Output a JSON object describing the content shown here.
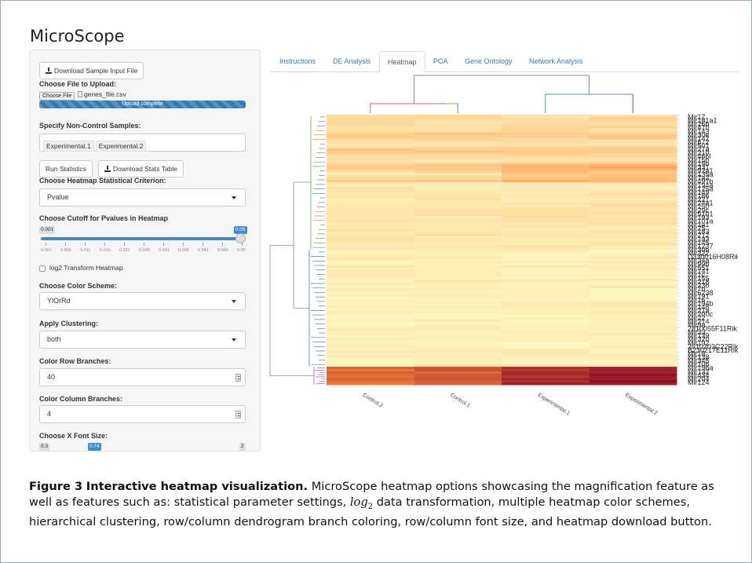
{
  "app": {
    "title": "MicroScope"
  },
  "sidebar": {
    "download_sample_label": "Download Sample Input File",
    "choose_file_label": "Choose File to Upload:",
    "file_button": "Choose File",
    "file_name": "genes_file.csv",
    "upload_status": "Upload complete",
    "noncontrol_label": "Specify Non-Control Samples:",
    "noncontrol_samples": [
      "Experimental.1",
      "Experimental.2"
    ],
    "run_stats_label": "Run Statistics",
    "download_stats_label": "Download Stats Table",
    "criterion_label": "Choose Heatmap Statistical Criterion:",
    "criterion_value": "Pvalue",
    "cutoff_label": "Choose Cutoff for Pvalues in Heatmap",
    "cutoff_slider": {
      "min_label": "0.001",
      "value_label": "0.05",
      "min": 0.001,
      "max": 0.05,
      "value": 0.05,
      "ticks": [
        "0.001",
        "0.006",
        "0.011",
        "0.016",
        "0.021",
        "0.026",
        "0.031",
        "0.036",
        "0.041",
        "0.046",
        "0.05"
      ]
    },
    "log2_label": "log2 Transform Heatmap",
    "log2_checked": false,
    "color_scheme_label": "Choose Color Scheme:",
    "color_scheme_value": "YlOrRd",
    "clustering_label": "Apply Clustering:",
    "clustering_value": "both",
    "row_branches_label": "Color Row Branches:",
    "row_branches_value": "40",
    "col_branches_label": "Color Column Branches:",
    "col_branches_value": "4",
    "xfont_label": "Choose X Font Size:",
    "xfont_slider": {
      "min_label": "0.3",
      "value_label": "0.74",
      "max_label": "2",
      "min": 0.3,
      "max": 2,
      "value": 0.74
    }
  },
  "tabs": [
    {
      "label": "Instructions",
      "active": false
    },
    {
      "label": "DE Analysis",
      "active": false
    },
    {
      "label": "Heatmap",
      "active": true
    },
    {
      "label": "PCA",
      "active": false
    },
    {
      "label": "Gene Ontology",
      "active": false
    },
    {
      "label": "Network Analysis",
      "active": false
    }
  ],
  "heatmap": {
    "columns": [
      "Control.2",
      "Control.1",
      "Experimental.1",
      "Experimental.2"
    ],
    "row_labels": [
      "Mir17",
      "Mir181a1",
      "Mir26b",
      "Mir470",
      "Mir143",
      "Mir30e",
      "Mir142",
      "Mir672",
      "Mir501",
      "Mir27a",
      "Mir210",
      "Mir466l",
      "Mir15b",
      "Mir19b",
      "Mir331",
      "Mir92a1",
      "Mir135a",
      "Mir7a2",
      "Mir497b",
      "Mir194a",
      "Mir125a",
      "Mir149",
      "Mir186",
      "Mir221",
      "Mir24a1",
      "Mir150",
      "Mir29c",
      "Mir5101",
      "Mir193",
      "Mir101a",
      "Mir1a1",
      "Mir25",
      "Mir183",
      "Mir212",
      "Mir1a3",
      "Mir145",
      "Mir1237",
      "Mir30b",
      "Mir322",
      "D330016H08Rik",
      "Mir34a",
      "Mir99b",
      "Mir551",
      "Mir141",
      "Mir1c",
      "Mir155",
      "Mir218",
      "Mir23b",
      "Mir7b",
      "Mir6238",
      "Mir191",
      "Mir16",
      "Mir194b",
      "Mir148",
      "Mir21a",
      "Mir200c",
      "Mir22",
      "Mir214",
      "Mir9a",
      "2810055F11Rik",
      "Mir33",
      "Mir139",
      "Mir320",
      "Mir192",
      "2610203C22Rik",
      "B230217E11Rik",
      "Mir18",
      "Mir138",
      "Mir345",
      "Mir10b",
      "Mir196a",
      "Mir132",
      "Mir434",
      "Mir204",
      "Mir124"
    ],
    "colors": {
      "low": "#ffffcc",
      "mid": "#fd8d3c",
      "high": "#800026"
    }
  },
  "caption": {
    "fig_label": "Figure 3",
    "title": "Interactive heatmap visualization.",
    "text_before": "MicroScope heatmap options showcasing the magnification feature as well as features such as: statistical parameter settings,",
    "math": "log",
    "math_sub": "2",
    "text_after": "data transformation, multiple heatmap color schemes, hierarchical clustering, row/column dendrogram branch coloring, row/column font size, and heatmap download button."
  }
}
